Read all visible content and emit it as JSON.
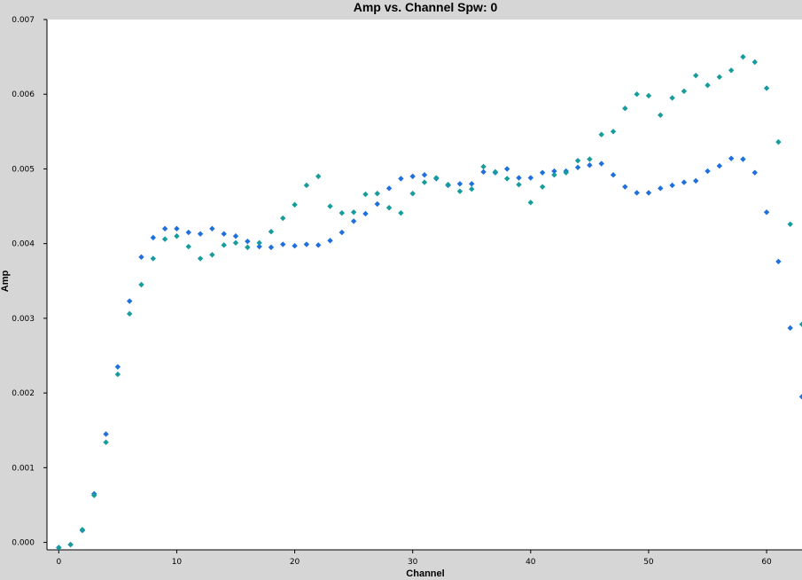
{
  "chart_data": {
    "type": "scatter",
    "title": "Amp vs. Channel Spw: 0",
    "xlabel": "Channel",
    "ylabel": "Amp",
    "xlim": [
      -1,
      63
    ],
    "ylim": [
      -0.0001,
      0.007
    ],
    "x_ticks": [
      0,
      10,
      20,
      30,
      40,
      50,
      60
    ],
    "y_ticks": [
      0.0,
      0.001,
      0.002,
      0.003,
      0.004,
      0.005,
      0.006,
      0.007
    ],
    "y_tick_labels": [
      "0.000",
      "0.001",
      "0.002",
      "0.003",
      "0.004",
      "0.005",
      "0.006",
      "0.007"
    ],
    "grid": false,
    "legend": "none",
    "series": [
      {
        "color": "#1f6fdc",
        "x": [
          0,
          1,
          2,
          3,
          4,
          5,
          6,
          7,
          8,
          9,
          10,
          11,
          12,
          13,
          14,
          15,
          16,
          17,
          18,
          19,
          20,
          21,
          22,
          23,
          24,
          25,
          26,
          27,
          28,
          29,
          30,
          31,
          32,
          33,
          34,
          35,
          36,
          37,
          38,
          39,
          40,
          41,
          42,
          43,
          44,
          45,
          46,
          47,
          48,
          49,
          50,
          51,
          52,
          53,
          54,
          55,
          56,
          57,
          58,
          59,
          60,
          61,
          62,
          63
        ],
        "values": [
          -7e-05,
          -3e-05,
          0.00016,
          0.00065,
          0.00145,
          0.00235,
          0.00323,
          0.00382,
          0.00408,
          0.0042,
          0.0042,
          0.00415,
          0.00413,
          0.0042,
          0.00413,
          0.0041,
          0.00403,
          0.00396,
          0.00395,
          0.00399,
          0.00397,
          0.00399,
          0.00398,
          0.00404,
          0.00415,
          0.0043,
          0.0044,
          0.00453,
          0.00474,
          0.00487,
          0.0049,
          0.00492,
          0.00487,
          0.00478,
          0.0048,
          0.0048,
          0.00496,
          0.00495,
          0.005,
          0.00488,
          0.00488,
          0.00495,
          0.00497,
          0.00497,
          0.00502,
          0.00505,
          0.00507,
          0.00492,
          0.00476,
          0.00468,
          0.00468,
          0.00474,
          0.00478,
          0.00482,
          0.00484,
          0.00497,
          0.00504,
          0.00514,
          0.00513,
          0.00495,
          0.00442,
          0.00376,
          0.00287,
          0.00195
        ]
      },
      {
        "color": "#169c9c",
        "x": [
          0,
          1,
          2,
          3,
          4,
          5,
          6,
          7,
          8,
          9,
          10,
          11,
          12,
          13,
          14,
          15,
          16,
          17,
          18,
          19,
          20,
          21,
          22,
          23,
          24,
          25,
          26,
          27,
          28,
          29,
          30,
          31,
          32,
          33,
          34,
          35,
          36,
          37,
          38,
          39,
          40,
          41,
          42,
          43,
          44,
          45,
          46,
          47,
          48,
          49,
          50,
          51,
          52,
          53,
          54,
          55,
          56,
          57,
          58,
          59,
          60,
          61,
          62,
          63
        ],
        "values": [
          -7e-05,
          -3e-05,
          0.00017,
          0.00063,
          0.00134,
          0.00225,
          0.00306,
          0.00345,
          0.0038,
          0.00406,
          0.0041,
          0.00396,
          0.0038,
          0.00385,
          0.00398,
          0.00401,
          0.00395,
          0.00401,
          0.00416,
          0.00434,
          0.00452,
          0.00478,
          0.0049,
          0.0045,
          0.00441,
          0.00442,
          0.00466,
          0.00467,
          0.00448,
          0.00441,
          0.00467,
          0.00482,
          0.00488,
          0.00479,
          0.0047,
          0.00473,
          0.00503,
          0.00496,
          0.00487,
          0.00479,
          0.00455,
          0.00476,
          0.00492,
          0.00495,
          0.00511,
          0.00513,
          0.00546,
          0.0055,
          0.00581,
          0.006,
          0.00598,
          0.00572,
          0.00595,
          0.00604,
          0.00625,
          0.00612,
          0.00623,
          0.00632,
          0.0065,
          0.00643,
          0.00608,
          0.00536,
          0.00426,
          0.00292
        ]
      }
    ]
  }
}
